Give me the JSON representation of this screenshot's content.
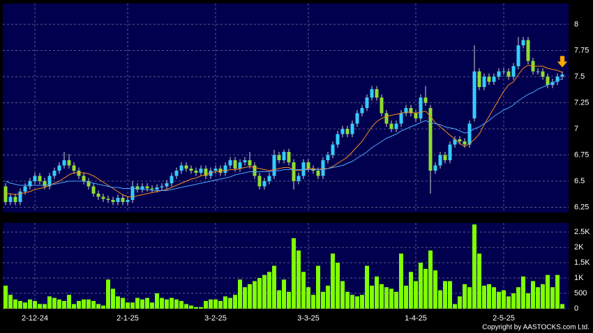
{
  "chart_data": [
    {
      "type": "candlestick",
      "categories": [
        null,
        null,
        null,
        null,
        null,
        null,
        "2-12-24",
        null,
        null,
        null,
        null,
        null,
        null,
        null,
        null,
        null,
        null,
        null,
        null,
        null,
        null,
        null,
        null,
        null,
        null,
        "2-1-25",
        null,
        null,
        null,
        null,
        null,
        null,
        null,
        null,
        null,
        null,
        null,
        null,
        null,
        null,
        null,
        null,
        null,
        "3-2-25",
        null,
        null,
        null,
        null,
        null,
        null,
        null,
        null,
        null,
        null,
        null,
        null,
        null,
        null,
        null,
        null,
        null,
        null,
        "3-3-25",
        null,
        null,
        null,
        null,
        null,
        null,
        null,
        null,
        null,
        null,
        null,
        null,
        null,
        null,
        null,
        null,
        null,
        null,
        null,
        null,
        null,
        "1-4-25",
        null,
        null,
        null,
        null,
        null,
        null,
        null,
        null,
        null,
        null,
        null,
        null,
        null,
        null,
        null,
        null,
        null,
        "2-5-25",
        null,
        null,
        null,
        null,
        null,
        null,
        null,
        null,
        null,
        null,
        null,
        null
      ],
      "open": [
        6.45,
        6.3,
        6.35,
        6.3,
        6.4,
        6.45,
        6.5,
        6.55,
        6.5,
        6.45,
        6.55,
        6.6,
        6.65,
        6.7,
        6.65,
        6.6,
        6.55,
        6.5,
        6.45,
        6.38,
        6.35,
        6.33,
        6.32,
        6.3,
        6.34,
        6.3,
        6.32,
        6.45,
        6.42,
        6.45,
        6.43,
        6.42,
        6.44,
        6.45,
        6.48,
        6.55,
        6.6,
        6.65,
        6.62,
        6.6,
        6.58,
        6.62,
        6.55,
        6.6,
        6.62,
        6.58,
        6.65,
        6.7,
        6.62,
        6.68,
        6.7,
        6.65,
        6.55,
        6.45,
        6.5,
        6.55,
        6.75,
        6.7,
        6.78,
        6.68,
        6.5,
        6.55,
        6.68,
        6.62,
        6.6,
        6.55,
        6.7,
        6.75,
        6.85,
        6.95,
        7.0,
        6.95,
        7.05,
        7.15,
        7.2,
        7.3,
        7.38,
        7.3,
        7.15,
        7.05,
        7.0,
        7.05,
        7.15,
        7.2,
        7.15,
        7.1,
        7.3,
        7.2,
        6.6,
        6.65,
        6.75,
        6.7,
        6.85,
        6.9,
        6.88,
        6.85,
        7.1,
        7.55,
        7.4,
        7.5,
        7.45,
        7.5,
        7.55,
        7.55,
        7.5,
        7.6,
        7.8,
        7.85,
        7.65,
        7.55,
        7.55,
        7.5,
        7.42,
        7.45,
        7.5
      ],
      "high": [
        6.48,
        6.38,
        6.38,
        6.43,
        6.48,
        6.53,
        6.58,
        6.58,
        6.53,
        6.58,
        6.63,
        6.68,
        6.78,
        6.76,
        6.68,
        6.63,
        6.58,
        6.53,
        6.48,
        6.41,
        6.38,
        6.36,
        6.35,
        6.37,
        6.37,
        6.35,
        6.5,
        6.48,
        6.48,
        6.48,
        6.46,
        6.47,
        6.48,
        6.51,
        6.58,
        6.63,
        6.68,
        6.68,
        6.65,
        6.63,
        6.65,
        6.65,
        6.63,
        6.65,
        6.65,
        6.68,
        6.73,
        6.73,
        6.71,
        6.73,
        6.78,
        6.68,
        6.58,
        6.53,
        6.58,
        6.8,
        6.78,
        6.8,
        6.81,
        6.71,
        6.58,
        6.71,
        6.71,
        6.65,
        6.63,
        6.73,
        6.78,
        6.88,
        6.98,
        7.03,
        7.03,
        7.08,
        7.18,
        7.23,
        7.33,
        7.41,
        7.41,
        7.33,
        7.18,
        7.08,
        7.08,
        7.18,
        7.23,
        7.23,
        7.18,
        7.33,
        7.41,
        7.23,
        6.68,
        6.78,
        6.78,
        6.88,
        6.93,
        6.93,
        6.91,
        7.08,
        7.8,
        7.58,
        7.53,
        7.53,
        7.53,
        7.58,
        7.58,
        7.58,
        7.63,
        7.88,
        7.88,
        7.88,
        7.68,
        7.58,
        7.58,
        7.53,
        7.48,
        7.53,
        7.55
      ],
      "low": [
        6.27,
        6.27,
        6.27,
        6.27,
        6.37,
        6.42,
        6.47,
        6.47,
        6.42,
        6.42,
        6.52,
        6.57,
        6.62,
        6.62,
        6.57,
        6.52,
        6.47,
        6.42,
        6.35,
        6.32,
        6.3,
        6.29,
        6.27,
        6.27,
        6.27,
        6.27,
        6.29,
        6.39,
        6.39,
        6.4,
        6.39,
        6.39,
        6.41,
        6.42,
        6.45,
        6.52,
        6.57,
        6.59,
        6.57,
        6.55,
        6.55,
        6.52,
        6.52,
        6.57,
        6.55,
        6.55,
        6.62,
        6.59,
        6.59,
        6.65,
        6.62,
        6.52,
        6.42,
        6.42,
        6.47,
        6.52,
        6.67,
        6.67,
        6.65,
        6.42,
        6.47,
        6.52,
        6.59,
        6.57,
        6.52,
        6.52,
        6.67,
        6.72,
        6.82,
        6.92,
        6.92,
        6.92,
        7.02,
        7.12,
        7.17,
        7.27,
        7.27,
        7.12,
        7.02,
        6.97,
        6.97,
        7.02,
        7.12,
        7.12,
        7.07,
        7.07,
        7.22,
        6.38,
        6.57,
        6.62,
        6.67,
        6.67,
        6.82,
        6.85,
        6.82,
        6.82,
        7.07,
        7.37,
        7.37,
        7.42,
        7.42,
        7.47,
        7.52,
        7.47,
        7.47,
        7.57,
        7.77,
        7.62,
        7.52,
        7.52,
        7.47,
        7.39,
        7.39,
        7.42,
        7.47
      ],
      "close": [
        6.3,
        6.35,
        6.3,
        6.4,
        6.45,
        6.5,
        6.55,
        6.5,
        6.45,
        6.55,
        6.6,
        6.65,
        6.7,
        6.65,
        6.6,
        6.55,
        6.5,
        6.45,
        6.38,
        6.35,
        6.33,
        6.32,
        6.3,
        6.34,
        6.3,
        6.32,
        6.45,
        6.42,
        6.45,
        6.43,
        6.42,
        6.44,
        6.45,
        6.48,
        6.55,
        6.6,
        6.65,
        6.62,
        6.6,
        6.58,
        6.62,
        6.55,
        6.6,
        6.62,
        6.58,
        6.65,
        6.7,
        6.62,
        6.68,
        6.7,
        6.65,
        6.55,
        6.45,
        6.5,
        6.55,
        6.75,
        6.7,
        6.78,
        6.68,
        6.5,
        6.55,
        6.68,
        6.62,
        6.6,
        6.55,
        6.7,
        6.75,
        6.85,
        6.95,
        7.0,
        6.95,
        7.05,
        7.15,
        7.2,
        7.3,
        7.38,
        7.3,
        7.15,
        7.05,
        7.0,
        7.05,
        7.15,
        7.2,
        7.15,
        7.1,
        7.3,
        7.25,
        6.6,
        6.65,
        6.75,
        6.7,
        6.85,
        6.9,
        6.88,
        6.85,
        7.05,
        7.55,
        7.4,
        7.5,
        7.45,
        7.5,
        7.55,
        7.55,
        7.5,
        7.6,
        7.8,
        7.85,
        7.65,
        7.55,
        7.55,
        7.5,
        7.42,
        7.45,
        7.5,
        7.52
      ],
      "up_color": "#33ccff",
      "down_color": "#8fdc2e",
      "wick_color": "#d0d0d0",
      "lines": [
        {
          "color": "#ff8c1a",
          "values": [
            6.38,
            6.38,
            6.37,
            6.38,
            6.39,
            6.4,
            6.42,
            6.43,
            6.44,
            6.46,
            6.48,
            6.5,
            6.53,
            6.56,
            6.58,
            6.58,
            6.58,
            6.57,
            6.55,
            6.52,
            6.49,
            6.46,
            6.43,
            6.4,
            6.37,
            6.35,
            6.35,
            6.36,
            6.37,
            6.38,
            6.39,
            6.4,
            6.41,
            6.42,
            6.44,
            6.46,
            6.48,
            6.5,
            6.52,
            6.53,
            6.55,
            6.56,
            6.58,
            6.59,
            6.6,
            6.6,
            6.61,
            6.61,
            6.62,
            6.63,
            6.64,
            6.63,
            6.62,
            6.61,
            6.6,
            6.61,
            6.62,
            6.63,
            6.63,
            6.61,
            6.6,
            6.61,
            6.62,
            6.62,
            6.61,
            6.62,
            6.62,
            6.64,
            6.67,
            6.7,
            6.73,
            6.78,
            6.83,
            6.88,
            6.95,
            7.02,
            7.07,
            7.1,
            7.12,
            7.13,
            7.14,
            7.15,
            7.16,
            7.16,
            7.15,
            7.16,
            7.17,
            7.12,
            7.06,
            7.02,
            6.98,
            6.94,
            6.9,
            6.86,
            6.83,
            6.86,
            6.9,
            6.95,
            7.04,
            7.12,
            7.2,
            7.28,
            7.36,
            7.42,
            7.45,
            7.52,
            7.58,
            7.61,
            7.6,
            7.6,
            7.6,
            7.58,
            7.57,
            7.56,
            7.54
          ]
        },
        {
          "color": "#4da6ff",
          "values": [
            6.5,
            6.48,
            6.47,
            6.46,
            6.46,
            6.46,
            6.46,
            6.46,
            6.46,
            6.47,
            6.47,
            6.48,
            6.49,
            6.5,
            6.5,
            6.5,
            6.5,
            6.49,
            6.48,
            6.47,
            6.46,
            6.45,
            6.44,
            6.44,
            6.43,
            6.43,
            6.43,
            6.43,
            6.42,
            6.42,
            6.41,
            6.41,
            6.41,
            6.41,
            6.42,
            6.43,
            6.44,
            6.45,
            6.46,
            6.47,
            6.48,
            6.49,
            6.5,
            6.51,
            6.52,
            6.53,
            6.54,
            6.56,
            6.57,
            6.58,
            6.59,
            6.59,
            6.59,
            6.59,
            6.59,
            6.6,
            6.6,
            6.61,
            6.61,
            6.61,
            6.61,
            6.61,
            6.61,
            6.61,
            6.61,
            6.61,
            6.62,
            6.63,
            6.64,
            6.65,
            6.67,
            6.69,
            6.72,
            6.75,
            6.78,
            6.82,
            6.85,
            6.88,
            6.91,
            6.93,
            6.95,
            6.98,
            7.0,
            7.02,
            7.04,
            7.06,
            7.08,
            7.06,
            7.05,
            7.04,
            7.02,
            7.01,
            7.0,
            6.98,
            6.96,
            6.97,
            7.0,
            7.02,
            7.05,
            7.08,
            7.12,
            7.15,
            7.18,
            7.2,
            7.23,
            7.27,
            7.3,
            7.33,
            7.35,
            7.38,
            7.4,
            7.42,
            7.44,
            7.46,
            7.48
          ]
        }
      ],
      "ylim": [
        6.2,
        8.2
      ],
      "yticks": [
        6.25,
        6.5,
        6.75,
        7,
        7.25,
        7.5,
        7.75,
        8
      ],
      "grid": true
    },
    {
      "type": "bar",
      "color": "#80ff00",
      "values": [
        750,
        450,
        300,
        250,
        200,
        300,
        250,
        150,
        150,
        400,
        350,
        300,
        250,
        450,
        150,
        250,
        300,
        300,
        250,
        150,
        100,
        950,
        650,
        400,
        350,
        200,
        200,
        350,
        300,
        350,
        200,
        500,
        350,
        300,
        350,
        300,
        250,
        150,
        100,
        50,
        50,
        250,
        300,
        300,
        250,
        400,
        350,
        450,
        950,
        700,
        800,
        900,
        1000,
        1100,
        1200,
        1400,
        600,
        950,
        550,
        2300,
        1900,
        1200,
        700,
        450,
        1400,
        550,
        750,
        1800,
        1500,
        900,
        550,
        450,
        400,
        450,
        1400,
        750,
        1050,
        800,
        700,
        650,
        550,
        1800,
        750,
        1200,
        900,
        1500,
        1300,
        1900,
        1250,
        600,
        900,
        900,
        150,
        400,
        800,
        700,
        2750,
        1800,
        750,
        800,
        700,
        550,
        600,
        400,
        500,
        700,
        1050,
        500,
        900,
        700,
        800,
        1100,
        700,
        1100,
        150
      ],
      "ylim": [
        0,
        2800
      ],
      "yticks": [
        0,
        500,
        {
          "value": 1000,
          "label": "1K"
        },
        {
          "value": 1500,
          "label": "1.5K"
        },
        {
          "value": 2000,
          "label": "2K"
        },
        {
          "value": 2500,
          "label": "2.5K"
        }
      ],
      "grid": true
    },
    {
      "type": "footer",
      "text": "Copyright by AASTOCKS.com Ltd."
    }
  ]
}
